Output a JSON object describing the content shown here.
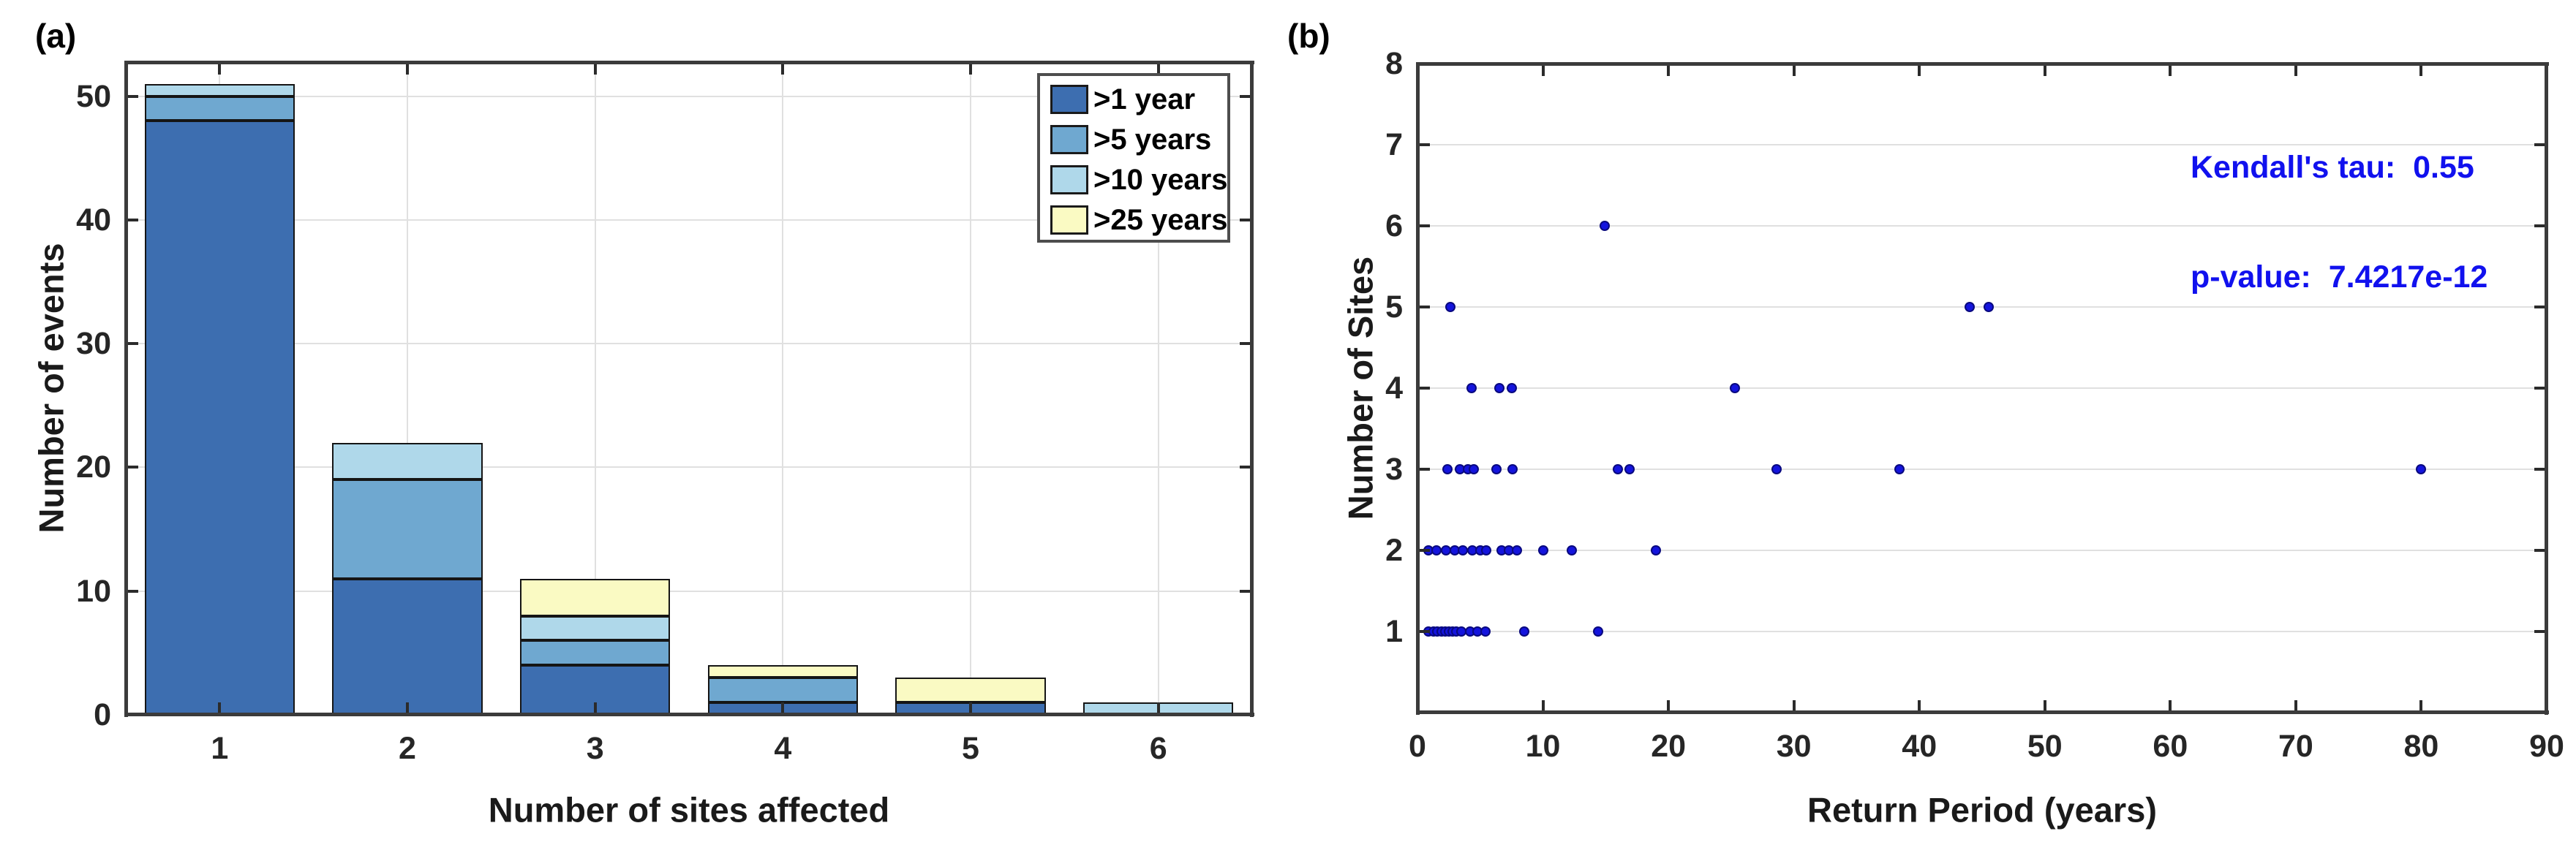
{
  "panels": {
    "a": {
      "label": "(a)"
    },
    "b": {
      "label": "(b)"
    }
  },
  "chart_data": [
    {
      "id": "a",
      "type": "bar",
      "stacked": true,
      "xlabel": "Number of sites affected",
      "ylabel": "Number of events",
      "categories": [
        1,
        2,
        3,
        4,
        5,
        6
      ],
      "series": [
        {
          "name": ">1 year",
          "color": "#3d6eb0",
          "values": [
            48,
            11,
            4,
            1,
            1,
            0
          ]
        },
        {
          "name": ">5 years",
          "color": "#6fa8d0",
          "values": [
            2,
            8,
            2,
            2,
            0,
            0
          ]
        },
        {
          "name": ">10 years",
          "color": "#afd8ea",
          "values": [
            1,
            3,
            2,
            0,
            0,
            1
          ]
        },
        {
          "name": ">25 years",
          "color": "#fafac3",
          "values": [
            0,
            0,
            3,
            1,
            2,
            0
          ]
        }
      ],
      "totals": [
        51,
        22,
        11,
        4,
        3,
        1
      ],
      "xlim": [
        0.5,
        6.5
      ],
      "ylim": [
        0,
        52.75
      ],
      "xticks": [
        1,
        2,
        3,
        4,
        5,
        6
      ],
      "yticks": [
        0,
        10,
        20,
        30,
        40,
        50
      ],
      "grid": "both",
      "bar_width": 0.8,
      "legend_position": "top-right"
    },
    {
      "id": "b",
      "type": "scatter",
      "xlabel": "Return Period (years)",
      "ylabel": "Number of Sites",
      "xlim": [
        0,
        90
      ],
      "ylim": [
        0,
        8
      ],
      "xticks": [
        0,
        10,
        20,
        30,
        40,
        50,
        60,
        70,
        80,
        90
      ],
      "yticks": [
        1,
        2,
        3,
        4,
        5,
        6,
        7,
        8
      ],
      "grid": "horizontal",
      "marker_color": "#1414dd",
      "marker_edge_color": "rgba(0,0,50,0.55)",
      "marker_size": 14,
      "points": [
        [
          0.9,
          1
        ],
        [
          1.3,
          1
        ],
        [
          1.6,
          1
        ],
        [
          1.9,
          1
        ],
        [
          2.2,
          1
        ],
        [
          2.5,
          1
        ],
        [
          2.8,
          1
        ],
        [
          3.1,
          1
        ],
        [
          3.5,
          1
        ],
        [
          4.2,
          1
        ],
        [
          4.8,
          1
        ],
        [
          5.4,
          1
        ],
        [
          8.5,
          1
        ],
        [
          14.4,
          1
        ],
        [
          0.9,
          2
        ],
        [
          1.5,
          2
        ],
        [
          2.3,
          2
        ],
        [
          3.0,
          2
        ],
        [
          3.6,
          2
        ],
        [
          4.4,
          2
        ],
        [
          5.0,
          2
        ],
        [
          5.5,
          2
        ],
        [
          6.7,
          2
        ],
        [
          7.3,
          2
        ],
        [
          7.9,
          2
        ],
        [
          10.0,
          2
        ],
        [
          12.3,
          2
        ],
        [
          19.0,
          2
        ],
        [
          2.4,
          3
        ],
        [
          3.4,
          3
        ],
        [
          4.0,
          3
        ],
        [
          4.5,
          3
        ],
        [
          6.3,
          3
        ],
        [
          7.6,
          3
        ],
        [
          16.0,
          3
        ],
        [
          16.9,
          3
        ],
        [
          28.6,
          3
        ],
        [
          38.4,
          3
        ],
        [
          80.0,
          3
        ],
        [
          4.3,
          4
        ],
        [
          6.5,
          4
        ],
        [
          7.5,
          4
        ],
        [
          25.3,
          4
        ],
        [
          2.6,
          5
        ],
        [
          44.0,
          5
        ],
        [
          45.5,
          5
        ],
        [
          14.9,
          6
        ]
      ],
      "annotation": {
        "line1": "Kendall's tau:  0.55",
        "line2": "p-value:  7.4217e-12",
        "color": "#1111ee"
      }
    }
  ]
}
